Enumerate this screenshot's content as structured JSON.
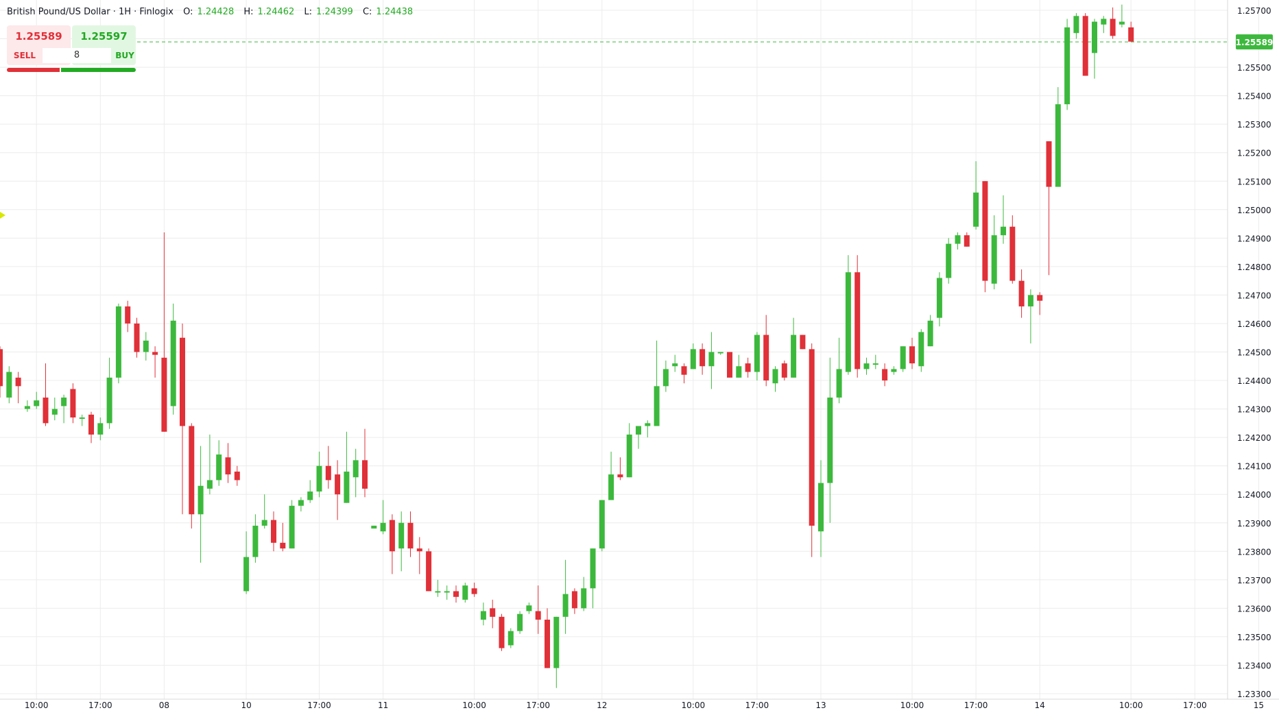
{
  "legend": {
    "symbol_label": "British Pound/US Dollar · 1H · Finlogix",
    "open_label": "O:",
    "open_value": "1.24428",
    "high_label": "H:",
    "high_value": "1.24462",
    "low_label": "L:",
    "low_value": "1.24399",
    "close_label": "C:",
    "close_value": "1.24438"
  },
  "trade_panel": {
    "sell_price": "1.25589",
    "buy_price": "1.25597",
    "sell_label": "SELL",
    "buy_label": "BUY",
    "quantity": "8"
  },
  "colors": {
    "up": "#3cb93c",
    "down": "#e03038",
    "grid": "#ececec",
    "axis_text": "#131722",
    "price_line": "#3cb93c"
  },
  "chart_data": {
    "type": "candlestick",
    "title": "British Pound/US Dollar · 1H · Finlogix",
    "ylim": [
      1.233,
      1.2572
    ],
    "grid": true,
    "current_price": 1.25589,
    "current_price_label": "1.25589",
    "y_ticks": [
      "1.25700",
      "1.25600",
      "1.25500",
      "1.25400",
      "1.25300",
      "1.25200",
      "1.25100",
      "1.25000",
      "1.24900",
      "1.24800",
      "1.24700",
      "1.24600",
      "1.24500",
      "1.24400",
      "1.24300",
      "1.24200",
      "1.24100",
      "1.24000",
      "1.23900",
      "1.23800",
      "1.23700",
      "1.23600",
      "1.23500",
      "1.23400",
      "1.23300"
    ],
    "x_tick_labels": [
      {
        "i": 4,
        "label": "10:00"
      },
      {
        "i": 11,
        "label": "17:00"
      },
      {
        "i": 18,
        "label": "08"
      },
      {
        "i": 27,
        "label": "10"
      },
      {
        "i": 35,
        "label": "17:00"
      },
      {
        "i": 42,
        "label": "11"
      },
      {
        "i": 52,
        "label": "10:00"
      },
      {
        "i": 59,
        "label": "17:00"
      },
      {
        "i": 66,
        "label": "12"
      },
      {
        "i": 76,
        "label": "10:00"
      },
      {
        "i": 83,
        "label": "17:00"
      },
      {
        "i": 90,
        "label": "13"
      },
      {
        "i": 100,
        "label": "10:00"
      },
      {
        "i": 107,
        "label": "17:00"
      },
      {
        "i": 114,
        "label": "14"
      },
      {
        "i": 124,
        "label": "10:00"
      },
      {
        "i": 131,
        "label": "17:00"
      },
      {
        "i": 138,
        "label": "15"
      }
    ],
    "candles": [
      {
        "o": 1.2451,
        "h": 1.2452,
        "l": 1.2434,
        "c": 1.2438
      },
      {
        "o": 1.2434,
        "h": 1.2445,
        "l": 1.2432,
        "c": 1.2443
      },
      {
        "o": 1.2441,
        "h": 1.2443,
        "l": 1.2432,
        "c": 1.2438
      },
      {
        "o": 1.243,
        "h": 1.2433,
        "l": 1.2429,
        "c": 1.2431
      },
      {
        "o": 1.2431,
        "h": 1.2436,
        "l": 1.243,
        "c": 1.2433
      },
      {
        "o": 1.2434,
        "h": 1.2446,
        "l": 1.2424,
        "c": 1.2425
      },
      {
        "o": 1.2428,
        "h": 1.2434,
        "l": 1.2426,
        "c": 1.243
      },
      {
        "o": 1.2431,
        "h": 1.2435,
        "l": 1.2425,
        "c": 1.2434
      },
      {
        "o": 1.2437,
        "h": 1.2439,
        "l": 1.2425,
        "c": 1.2427
      },
      {
        "o": 1.2427,
        "h": 1.2428,
        "l": 1.2424,
        "c": 1.2427
      },
      {
        "o": 1.2428,
        "h": 1.2429,
        "l": 1.2418,
        "c": 1.2421
      },
      {
        "o": 1.2421,
        "h": 1.2427,
        "l": 1.2419,
        "c": 1.2425
      },
      {
        "o": 1.2425,
        "h": 1.2448,
        "l": 1.2423,
        "c": 1.2441
      },
      {
        "o": 1.2441,
        "h": 1.2467,
        "l": 1.2439,
        "c": 1.2466
      },
      {
        "o": 1.2466,
        "h": 1.2468,
        "l": 1.2457,
        "c": 1.246
      },
      {
        "o": 1.246,
        "h": 1.2462,
        "l": 1.2448,
        "c": 1.245
      },
      {
        "o": 1.245,
        "h": 1.2457,
        "l": 1.2447,
        "c": 1.2454
      },
      {
        "o": 1.245,
        "h": 1.2452,
        "l": 1.2441,
        "c": 1.2449
      },
      {
        "o": 1.2448,
        "h": 1.2492,
        "l": 1.2422,
        "c": 1.2422
      },
      {
        "o": 1.2431,
        "h": 1.2467,
        "l": 1.2428,
        "c": 1.2461
      },
      {
        "o": 1.2455,
        "h": 1.246,
        "l": 1.2393,
        "c": 1.2424
      },
      {
        "o": 1.2424,
        "h": 1.2425,
        "l": 1.2388,
        "c": 1.2393
      },
      {
        "o": 1.2393,
        "h": 1.2417,
        "l": 1.2376,
        "c": 1.2403
      },
      {
        "o": 1.2402,
        "h": 1.2421,
        "l": 1.24,
        "c": 1.2405
      },
      {
        "o": 1.2405,
        "h": 1.2419,
        "l": 1.2403,
        "c": 1.2414
      },
      {
        "o": 1.2413,
        "h": 1.2418,
        "l": 1.2404,
        "c": 1.2407
      },
      {
        "o": 1.2408,
        "h": 1.241,
        "l": 1.2403,
        "c": 1.2405
      },
      {
        "o": 1.2366,
        "h": 1.2387,
        "l": 1.2365,
        "c": 1.2378
      },
      {
        "o": 1.2378,
        "h": 1.2393,
        "l": 1.2376,
        "c": 1.2389
      },
      {
        "o": 1.2389,
        "h": 1.24,
        "l": 1.2388,
        "c": 1.2391
      },
      {
        "o": 1.2391,
        "h": 1.2394,
        "l": 1.238,
        "c": 1.2383
      },
      {
        "o": 1.2383,
        "h": 1.239,
        "l": 1.238,
        "c": 1.2381
      },
      {
        "o": 1.2381,
        "h": 1.2398,
        "l": 1.2381,
        "c": 1.2396
      },
      {
        "o": 1.2396,
        "h": 1.2399,
        "l": 1.2394,
        "c": 1.2398
      },
      {
        "o": 1.2398,
        "h": 1.2405,
        "l": 1.2397,
        "c": 1.2401
      },
      {
        "o": 1.2401,
        "h": 1.2415,
        "l": 1.2399,
        "c": 1.241
      },
      {
        "o": 1.241,
        "h": 1.2417,
        "l": 1.2402,
        "c": 1.2405
      },
      {
        "o": 1.2407,
        "h": 1.2412,
        "l": 1.2391,
        "c": 1.24
      },
      {
        "o": 1.2397,
        "h": 1.2422,
        "l": 1.2397,
        "c": 1.2408
      },
      {
        "o": 1.2406,
        "h": 1.2416,
        "l": 1.2399,
        "c": 1.2412
      },
      {
        "o": 1.2412,
        "h": 1.2423,
        "l": 1.2399,
        "c": 1.2402
      },
      {
        "o": 1.2388,
        "h": 1.2389,
        "l": 1.2388,
        "c": 1.2389
      },
      {
        "o": 1.2387,
        "h": 1.2398,
        "l": 1.2386,
        "c": 1.239
      },
      {
        "o": 1.2391,
        "h": 1.2393,
        "l": 1.2372,
        "c": 1.238
      },
      {
        "o": 1.2381,
        "h": 1.2394,
        "l": 1.2373,
        "c": 1.239
      },
      {
        "o": 1.239,
        "h": 1.2394,
        "l": 1.2378,
        "c": 1.2381
      },
      {
        "o": 1.2381,
        "h": 1.2385,
        "l": 1.2372,
        "c": 1.238
      },
      {
        "o": 1.238,
        "h": 1.2381,
        "l": 1.2366,
        "c": 1.2366
      },
      {
        "o": 1.2366,
        "h": 1.237,
        "l": 1.2364,
        "c": 1.2366
      },
      {
        "o": 1.2366,
        "h": 1.2368,
        "l": 1.2363,
        "c": 1.2366
      },
      {
        "o": 1.2366,
        "h": 1.2368,
        "l": 1.2362,
        "c": 1.2364
      },
      {
        "o": 1.2363,
        "h": 1.2369,
        "l": 1.2362,
        "c": 1.2368
      },
      {
        "o": 1.2367,
        "h": 1.2369,
        "l": 1.2364,
        "c": 1.2365
      },
      {
        "o": 1.2356,
        "h": 1.2362,
        "l": 1.2354,
        "c": 1.2359
      },
      {
        "o": 1.236,
        "h": 1.2363,
        "l": 1.2353,
        "c": 1.2357
      },
      {
        "o": 1.2357,
        "h": 1.2358,
        "l": 1.2345,
        "c": 1.2346
      },
      {
        "o": 1.2347,
        "h": 1.2353,
        "l": 1.2346,
        "c": 1.2352
      },
      {
        "o": 1.2352,
        "h": 1.2359,
        "l": 1.2351,
        "c": 1.2358
      },
      {
        "o": 1.2359,
        "h": 1.2362,
        "l": 1.2358,
        "c": 1.2361
      },
      {
        "o": 1.2359,
        "h": 1.2368,
        "l": 1.2351,
        "c": 1.2356
      },
      {
        "o": 1.2356,
        "h": 1.236,
        "l": 1.2339,
        "c": 1.2339
      },
      {
        "o": 1.2339,
        "h": 1.2357,
        "l": 1.2332,
        "c": 1.2357
      },
      {
        "o": 1.2357,
        "h": 1.2377,
        "l": 1.2351,
        "c": 1.2365
      },
      {
        "o": 1.2366,
        "h": 1.2367,
        "l": 1.2358,
        "c": 1.236
      },
      {
        "o": 1.236,
        "h": 1.2371,
        "l": 1.2359,
        "c": 1.2367
      },
      {
        "o": 1.2367,
        "h": 1.2381,
        "l": 1.236,
        "c": 1.2381
      },
      {
        "o": 1.2381,
        "h": 1.2398,
        "l": 1.238,
        "c": 1.2398
      },
      {
        "o": 1.2398,
        "h": 1.2415,
        "l": 1.2398,
        "c": 1.2407
      },
      {
        "o": 1.2407,
        "h": 1.2413,
        "l": 1.2405,
        "c": 1.2406
      },
      {
        "o": 1.2406,
        "h": 1.2425,
        "l": 1.2406,
        "c": 1.2421
      },
      {
        "o": 1.2421,
        "h": 1.2424,
        "l": 1.2416,
        "c": 1.2424
      },
      {
        "o": 1.2424,
        "h": 1.2426,
        "l": 1.242,
        "c": 1.2425
      },
      {
        "o": 1.2424,
        "h": 1.2454,
        "l": 1.2424,
        "c": 1.2438
      },
      {
        "o": 1.2438,
        "h": 1.2447,
        "l": 1.2436,
        "c": 1.2444
      },
      {
        "o": 1.2445,
        "h": 1.2449,
        "l": 1.2443,
        "c": 1.2446
      },
      {
        "o": 1.2445,
        "h": 1.2446,
        "l": 1.2439,
        "c": 1.2442
      },
      {
        "o": 1.2444,
        "h": 1.2453,
        "l": 1.2444,
        "c": 1.2451
      },
      {
        "o": 1.2451,
        "h": 1.2453,
        "l": 1.2442,
        "c": 1.2445
      },
      {
        "o": 1.2445,
        "h": 1.2457,
        "l": 1.2437,
        "c": 1.245
      },
      {
        "o": 1.245,
        "h": 1.245,
        "l": 1.2449,
        "c": 1.245
      },
      {
        "o": 1.245,
        "h": 1.245,
        "l": 1.2441,
        "c": 1.2441
      },
      {
        "o": 1.2441,
        "h": 1.2449,
        "l": 1.2441,
        "c": 1.2445
      },
      {
        "o": 1.2446,
        "h": 1.2448,
        "l": 1.2441,
        "c": 1.2443
      },
      {
        "o": 1.2443,
        "h": 1.2457,
        "l": 1.244,
        "c": 1.2456
      },
      {
        "o": 1.2456,
        "h": 1.2463,
        "l": 1.2438,
        "c": 1.244
      },
      {
        "o": 1.2439,
        "h": 1.2445,
        "l": 1.2436,
        "c": 1.2444
      },
      {
        "o": 1.2446,
        "h": 1.2447,
        "l": 1.244,
        "c": 1.2441
      },
      {
        "o": 1.2441,
        "h": 1.2462,
        "l": 1.2441,
        "c": 1.2456
      },
      {
        "o": 1.2456,
        "h": 1.2456,
        "l": 1.2451,
        "c": 1.2451
      },
      {
        "o": 1.2451,
        "h": 1.2453,
        "l": 1.2378,
        "c": 1.2389
      },
      {
        "o": 1.2387,
        "h": 1.2412,
        "l": 1.2378,
        "c": 1.2404
      },
      {
        "o": 1.2404,
        "h": 1.2448,
        "l": 1.239,
        "c": 1.2434
      },
      {
        "o": 1.2434,
        "h": 1.2455,
        "l": 1.2432,
        "c": 1.2444
      },
      {
        "o": 1.2443,
        "h": 1.2484,
        "l": 1.2442,
        "c": 1.2478
      },
      {
        "o": 1.2478,
        "h": 1.2484,
        "l": 1.2441,
        "c": 1.2444
      },
      {
        "o": 1.2444,
        "h": 1.2448,
        "l": 1.2442,
        "c": 1.2446
      },
      {
        "o": 1.2446,
        "h": 1.2449,
        "l": 1.2444,
        "c": 1.2446
      },
      {
        "o": 1.2444,
        "h": 1.2446,
        "l": 1.2438,
        "c": 1.244
      },
      {
        "o": 1.2443,
        "h": 1.2445,
        "l": 1.2442,
        "c": 1.2444
      },
      {
        "o": 1.2444,
        "h": 1.2452,
        "l": 1.2443,
        "c": 1.2452
      },
      {
        "o": 1.2452,
        "h": 1.2455,
        "l": 1.2444,
        "c": 1.2446
      },
      {
        "o": 1.2445,
        "h": 1.2458,
        "l": 1.2443,
        "c": 1.2457
      },
      {
        "o": 1.2452,
        "h": 1.2463,
        "l": 1.2452,
        "c": 1.2461
      },
      {
        "o": 1.2462,
        "h": 1.2478,
        "l": 1.2459,
        "c": 1.2476
      },
      {
        "o": 1.2476,
        "h": 1.249,
        "l": 1.2474,
        "c": 1.2488
      },
      {
        "o": 1.2488,
        "h": 1.2492,
        "l": 1.2486,
        "c": 1.2491
      },
      {
        "o": 1.2491,
        "h": 1.2492,
        "l": 1.2487,
        "c": 1.2487
      },
      {
        "o": 1.2494,
        "h": 1.2517,
        "l": 1.2493,
        "c": 1.2506
      },
      {
        "o": 1.251,
        "h": 1.251,
        "l": 1.2471,
        "c": 1.2475
      },
      {
        "o": 1.2474,
        "h": 1.2498,
        "l": 1.2472,
        "c": 1.2491
      },
      {
        "o": 1.2491,
        "h": 1.2505,
        "l": 1.2488,
        "c": 1.2494
      },
      {
        "o": 1.2494,
        "h": 1.2498,
        "l": 1.2474,
        "c": 1.2475
      },
      {
        "o": 1.2475,
        "h": 1.2479,
        "l": 1.2462,
        "c": 1.2466
      },
      {
        "o": 1.2466,
        "h": 1.2472,
        "l": 1.2453,
        "c": 1.247
      },
      {
        "o": 1.247,
        "h": 1.2471,
        "l": 1.2463,
        "c": 1.2468
      },
      {
        "o": 1.2524,
        "h": 1.2524,
        "l": 1.2477,
        "c": 1.2508
      },
      {
        "o": 1.2508,
        "h": 1.2543,
        "l": 1.2508,
        "c": 1.2537
      },
      {
        "o": 1.2537,
        "h": 1.2567,
        "l": 1.2535,
        "c": 1.2564
      },
      {
        "o": 1.2562,
        "h": 1.2569,
        "l": 1.256,
        "c": 1.2568
      },
      {
        "o": 1.2568,
        "h": 1.2569,
        "l": 1.2547,
        "c": 1.2547
      },
      {
        "o": 1.2555,
        "h": 1.2567,
        "l": 1.2546,
        "c": 1.2566
      },
      {
        "o": 1.2565,
        "h": 1.2568,
        "l": 1.2562,
        "c": 1.2567
      },
      {
        "o": 1.2567,
        "h": 1.2571,
        "l": 1.256,
        "c": 1.2561
      },
      {
        "o": 1.2565,
        "h": 1.2572,
        "l": 1.2564,
        "c": 1.2566
      },
      {
        "o": 1.2564,
        "h": 1.2566,
        "l": 1.2559,
        "c": 1.2559
      }
    ]
  }
}
